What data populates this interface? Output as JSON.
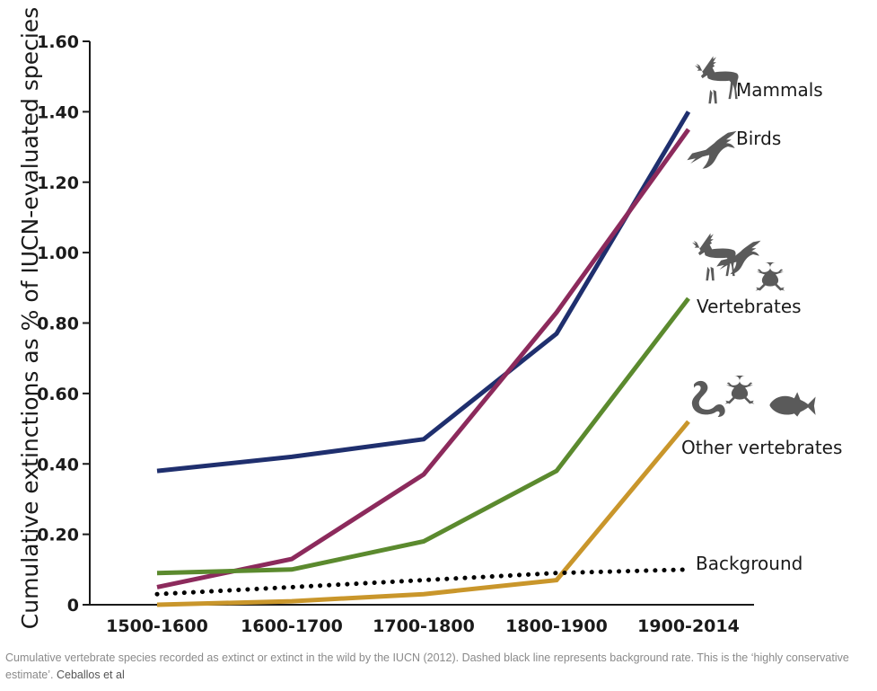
{
  "chart_data": {
    "type": "line",
    "categories": [
      "1500-1600",
      "1600-1700",
      "1700-1800",
      "1800-1900",
      "1900-2014"
    ],
    "ylabel": "Cumulative extinctions as % of IUCN-evaluated species",
    "xlabel": "",
    "ylim": [
      0,
      1.6
    ],
    "yticks": [
      "0",
      "0.20",
      "0.40",
      "0.60",
      "0.80",
      "1.00",
      "1.20",
      "1.40",
      "1.60"
    ],
    "grid": false,
    "series": [
      {
        "name": "Mammals",
        "color": "#1f2f6e",
        "style": "solid",
        "values": [
          0.38,
          0.42,
          0.47,
          0.77,
          1.4
        ]
      },
      {
        "name": "Birds",
        "color": "#8c2a5c",
        "style": "solid",
        "values": [
          0.05,
          0.13,
          0.37,
          0.83,
          1.35
        ]
      },
      {
        "name": "Vertebrates",
        "color": "#5b8a2e",
        "style": "solid",
        "values": [
          0.09,
          0.1,
          0.18,
          0.38,
          0.87
        ]
      },
      {
        "name": "Other vertebrates",
        "color": "#c9962b",
        "style": "solid",
        "values": [
          0.0,
          0.01,
          0.03,
          0.07,
          0.52
        ]
      },
      {
        "name": "Background",
        "color": "#000000",
        "style": "dotted",
        "values": [
          0.03,
          0.05,
          0.07,
          0.09,
          0.1
        ]
      }
    ],
    "icons": [
      "deer-icon",
      "bird-icon",
      "frog-icon",
      "snake-icon",
      "fish-icon"
    ]
  },
  "caption": {
    "text": "Cumulative vertebrate species recorded as extinct or extinct in the wild by the IUCN (2012). Dashed black line represents background rate. This is the ‘highly conservative estimate’.",
    "credit": "Ceballos et al"
  }
}
